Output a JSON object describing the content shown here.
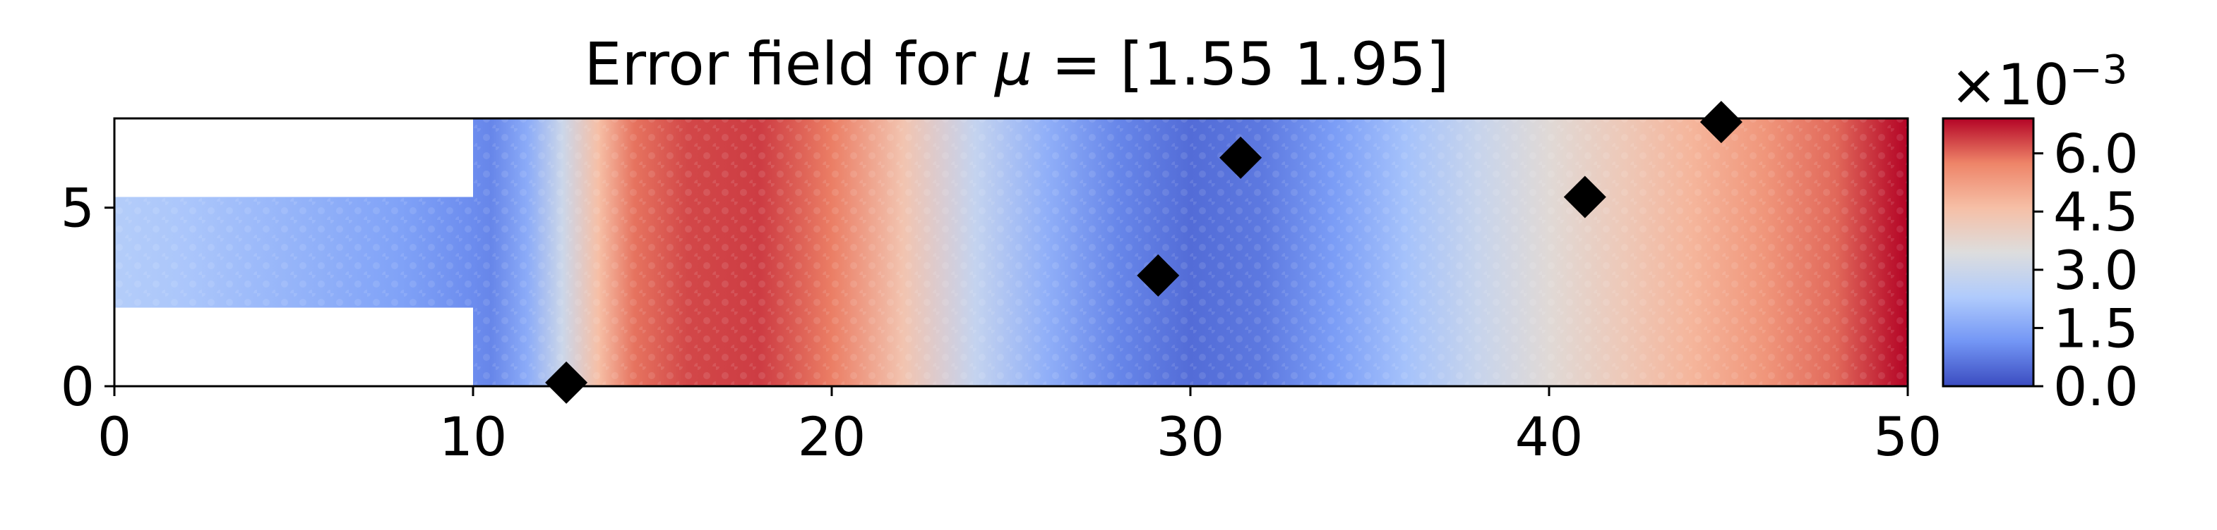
{
  "chart_data": {
    "type": "heatmap",
    "title": {
      "prefix": "Error field for ",
      "symbol": "μ",
      "suffix": " = [1.55 1.95]"
    },
    "xlabel": "",
    "ylabel": "",
    "xlim": [
      0,
      50
    ],
    "ylim": [
      0,
      7.5
    ],
    "x_ticks": [
      0,
      10,
      20,
      30,
      40,
      50
    ],
    "y_ticks": [
      0,
      5
    ],
    "domain": {
      "inlet_x": [
        0,
        10
      ],
      "inlet_y": [
        2.2,
        5.3
      ],
      "chamber_x": [
        10,
        50
      ],
      "chamber_y": [
        0,
        7.5
      ]
    },
    "colormap": "coolwarm",
    "colormap_stops": [
      "#3b4cc0",
      "#7396f5",
      "#b0cbfc",
      "#dddddd",
      "#f6bfa6",
      "#ee8468",
      "#b40426"
    ],
    "field_profile": {
      "description_units": "error value (×1e-3) as function of x",
      "x": [
        0,
        2,
        5,
        8,
        10,
        10.5,
        11.5,
        12.5,
        13.5,
        14.5,
        16,
        18,
        20,
        22,
        24,
        26,
        28,
        30,
        32,
        34,
        36,
        38,
        40,
        42,
        44,
        46,
        48,
        49.5,
        50
      ],
      "values": [
        2.4,
        2.2,
        1.8,
        1.4,
        1.0,
        0.9,
        1.6,
        3.0,
        4.6,
        5.9,
        6.3,
        6.4,
        5.8,
        4.4,
        2.8,
        1.7,
        0.9,
        0.5,
        0.7,
        1.3,
        2.1,
        2.9,
        3.6,
        4.2,
        4.8,
        5.4,
        6.0,
        6.7,
        6.9
      ]
    },
    "markers": {
      "shape": "diamond",
      "color": "#000000",
      "points": [
        {
          "x": 12.6,
          "y": 0.1
        },
        {
          "x": 29.1,
          "y": 3.1
        },
        {
          "x": 31.4,
          "y": 6.4
        },
        {
          "x": 41.0,
          "y": 5.3
        },
        {
          "x": 44.8,
          "y": 7.4
        }
      ]
    },
    "colorbar": {
      "vmin": 0.0,
      "vmax": 6.9,
      "exponent_base": "×10",
      "exponent": "−3",
      "ticks": [
        0.0,
        1.5,
        3.0,
        4.5,
        6.0
      ],
      "tick_labels": [
        "0.0",
        "1.5",
        "3.0",
        "4.5",
        "6.0"
      ]
    },
    "grid": false,
    "legend": "none"
  }
}
